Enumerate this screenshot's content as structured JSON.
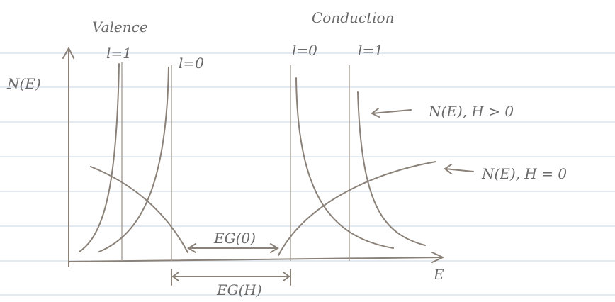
{
  "labels": {
    "valence": "Valence",
    "conduction": "Conduction",
    "valence_l1": "l=1",
    "valence_l0": "l=0",
    "conduction_l0": "l=0",
    "conduction_l1": "l=1",
    "y_axis": "N(E)",
    "x_axis": "E",
    "curve_h_positive": "N(E), H > 0",
    "curve_h_zero": "N(E), H = 0",
    "gap_zero": "EG(0)",
    "gap_h": "EG(H)"
  }
}
